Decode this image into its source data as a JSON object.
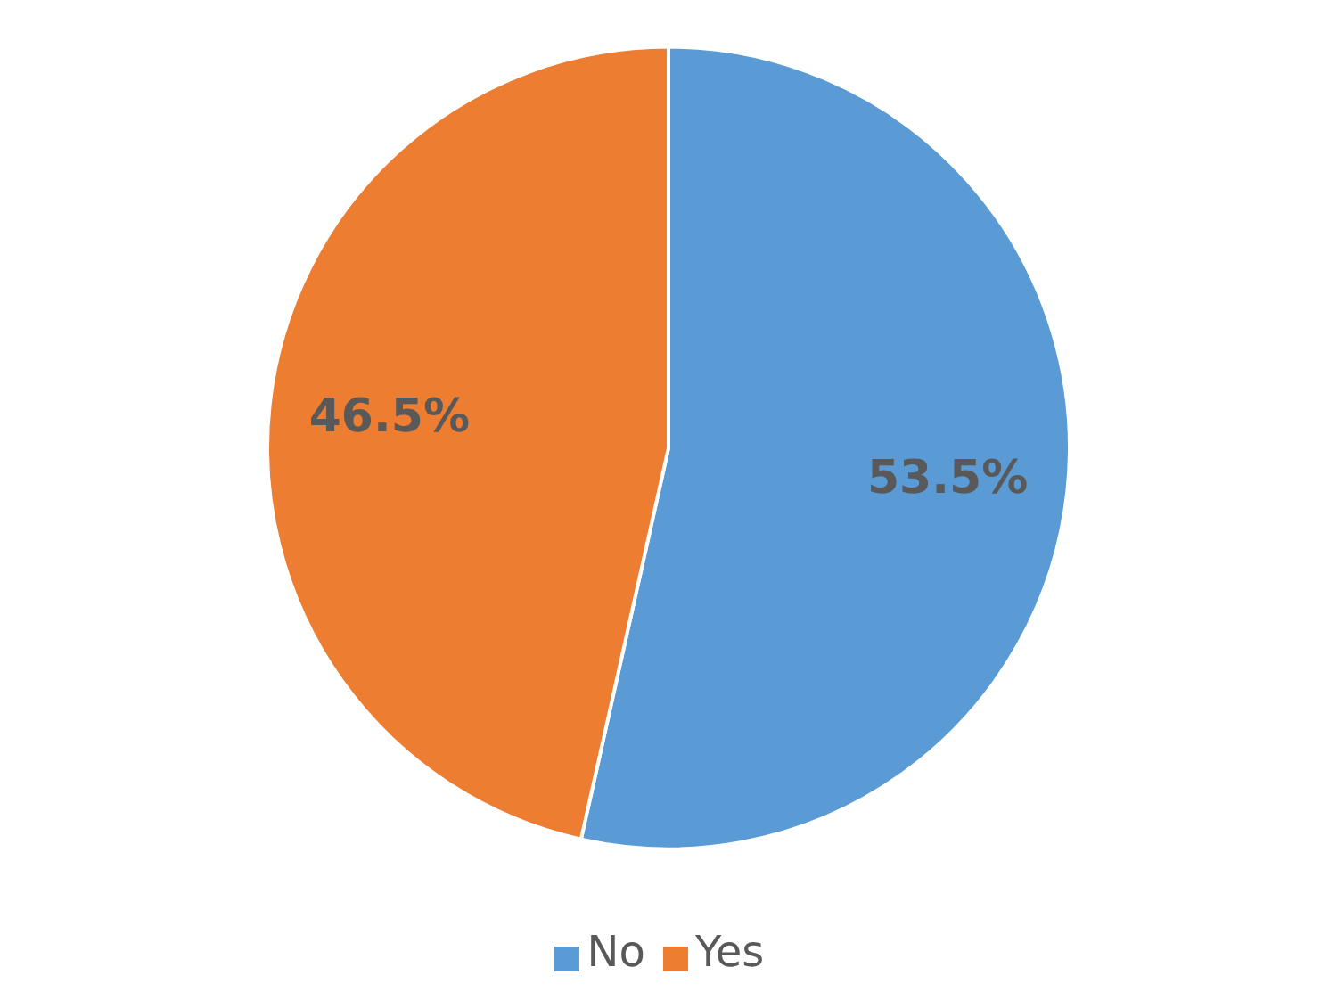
{
  "chart_data": {
    "type": "pie",
    "categories": [
      "No",
      "Yes"
    ],
    "values": [
      53.5,
      46.5
    ],
    "colors": [
      "#5b9bd5",
      "#ed7d31"
    ],
    "value_labels": [
      "53.5%",
      "46.5%"
    ],
    "legend": "bottom"
  }
}
